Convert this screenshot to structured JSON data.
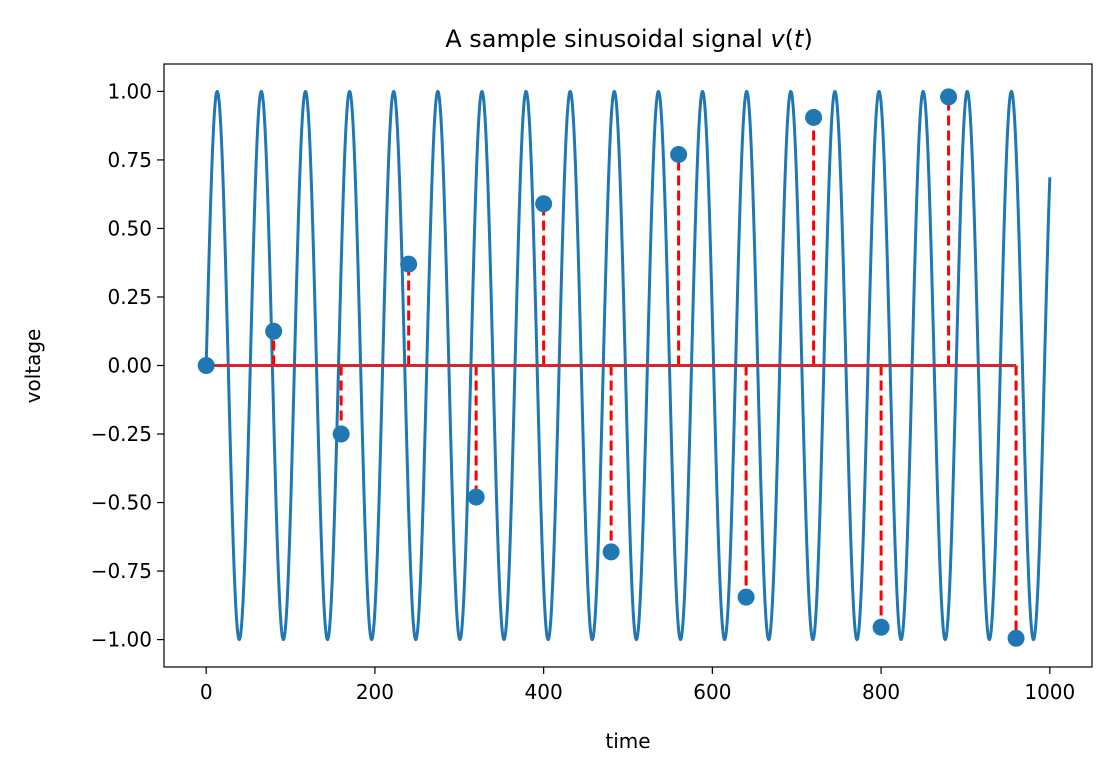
{
  "chart_data": {
    "type": "line",
    "title_prefix": "A sample sinusoidal signal ",
    "title_var": "v",
    "title_open": "(",
    "title_arg": "t",
    "title_close": ")",
    "xlabel": "time",
    "ylabel": "voltage",
    "xlim": [
      -50,
      1050
    ],
    "ylim": [
      -1.1,
      1.1
    ],
    "xticks": [
      0,
      200,
      400,
      600,
      800,
      1000
    ],
    "xtick_labels": [
      "0",
      "200",
      "400",
      "600",
      "800",
      "1000"
    ],
    "yticks": [
      1.0,
      0.75,
      0.5,
      0.25,
      0.0,
      -0.25,
      -0.5,
      -0.75,
      -1.0
    ],
    "ytick_labels": [
      "1.00",
      "0.75",
      "0.50",
      "0.25",
      "0.00",
      "−0.25",
      "−0.50",
      "−0.75",
      "−1.00"
    ],
    "grid": false,
    "series": [
      {
        "kind": "line",
        "x_range": [
          0,
          1000
        ],
        "period": 52.3,
        "amplitude": 1.0,
        "color": "#1f77b4"
      },
      {
        "kind": "stem",
        "x": [
          0,
          80,
          160,
          240,
          320,
          400,
          480,
          560,
          640,
          720,
          800,
          880,
          960
        ],
        "values": [
          0.0,
          0.125,
          -0.25,
          0.37,
          -0.48,
          0.59,
          -0.68,
          0.77,
          -0.845,
          0.905,
          -0.955,
          0.98,
          -0.995
        ],
        "marker_color": "#1f77b4",
        "stem_color": "#ff0000",
        "baseline_color": "#d62728"
      }
    ]
  }
}
